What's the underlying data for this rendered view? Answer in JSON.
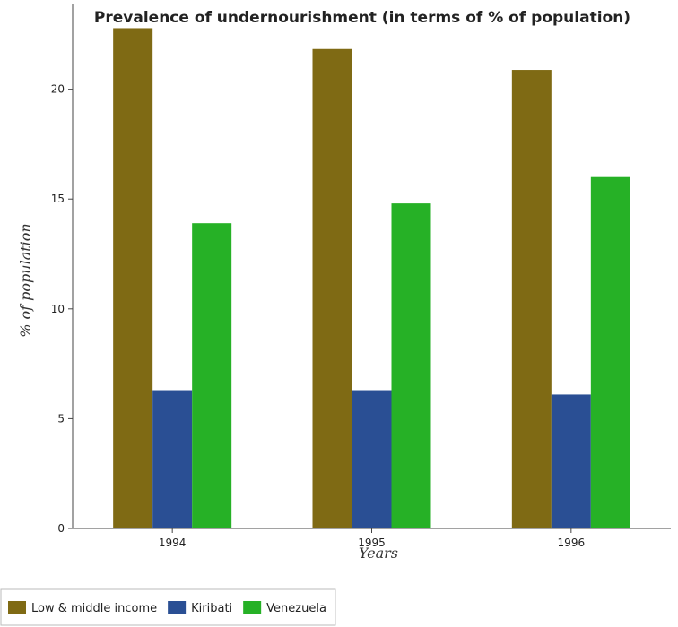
{
  "chart_data": {
    "type": "bar",
    "title": "Prevalence of undernourishment (in terms of % of population)",
    "xlabel": "Years",
    "ylabel": "% of population",
    "categories": [
      "1994",
      "1995",
      "1996"
    ],
    "series": [
      {
        "name": "Low & middle income",
        "color": "#7f6a14",
        "values": [
          22.78,
          21.83,
          20.88
        ]
      },
      {
        "name": "Kiribati",
        "color": "#2a4f94",
        "values": [
          6.3,
          6.3,
          6.1
        ]
      },
      {
        "name": "Venezuela",
        "color": "#26b126",
        "values": [
          13.9,
          14.8,
          16.0
        ]
      }
    ],
    "yticks": [
      0,
      5,
      10,
      15,
      20
    ],
    "ylim": [
      0,
      23.9
    ],
    "grid": false,
    "legend_position": "bottom-left"
  }
}
